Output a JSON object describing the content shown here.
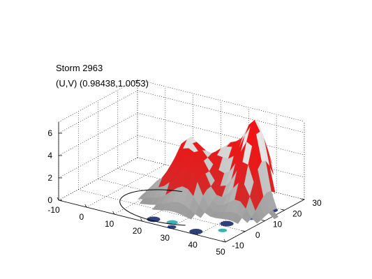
{
  "figure": {
    "title_line1": "Storm 2963",
    "title_line2": "(U,V) (0.98438,1.0053)"
  },
  "chart_data": {
    "type": "surface3d",
    "title": "Storm 2963",
    "subtitle": "(U,V) (0.98438,1.0053)",
    "xlabel": "",
    "ylabel": "",
    "zlabel": "",
    "x_ticks": [
      -10,
      0,
      10,
      20,
      30,
      40,
      50
    ],
    "y_ticks": [
      -10,
      0,
      10,
      20,
      30
    ],
    "z_ticks": [
      0,
      2,
      4,
      6
    ],
    "xlim": [
      -10,
      50
    ],
    "ylim": [
      -10,
      30
    ],
    "zlim": [
      0,
      7
    ],
    "grid": true,
    "colors": {
      "surface": "#b9b9b9",
      "highlight": "#dd1a1a",
      "base_dark": "#0a1f66",
      "base_cyan": "#1aa6a6",
      "outline": "#000000"
    }
  }
}
